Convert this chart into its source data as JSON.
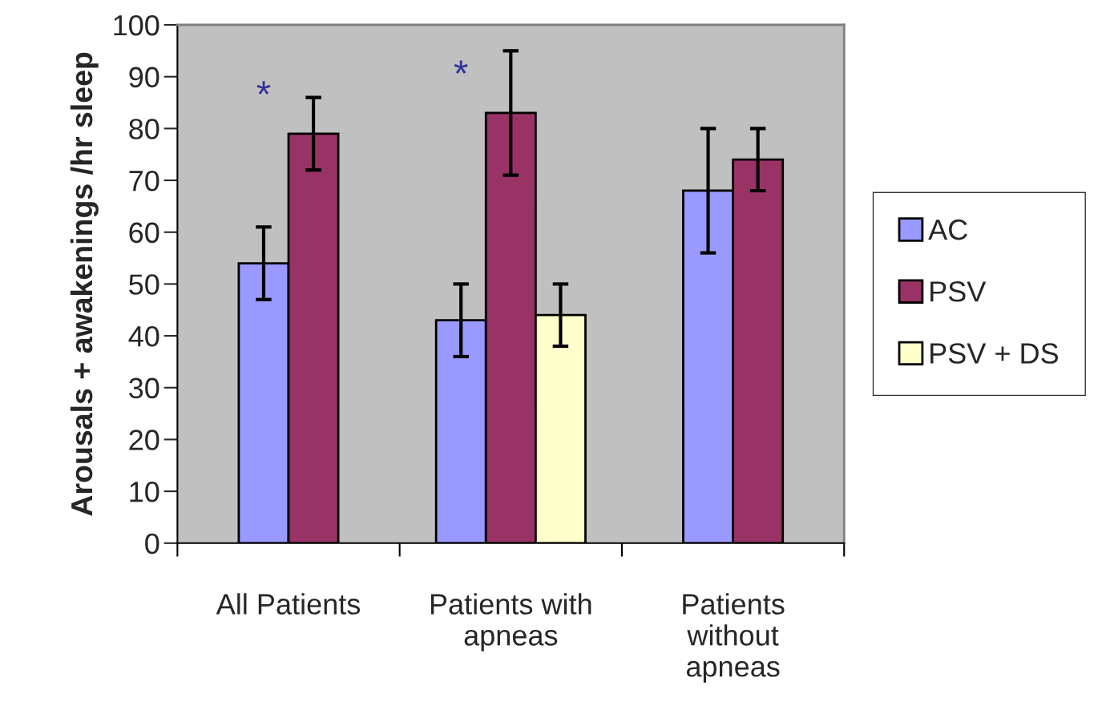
{
  "chart_data": {
    "type": "bar",
    "ylabel": "Arousals + awakenings /hr sleep",
    "categories": [
      "All Patients",
      "Patients with\napneas",
      "Patients\nwithout\napneas"
    ],
    "series": [
      {
        "name": "AC",
        "color": "#9999ff",
        "values": [
          54,
          43,
          68
        ],
        "errors": [
          7,
          7,
          12
        ]
      },
      {
        "name": "PSV",
        "color": "#993366",
        "values": [
          79,
          83,
          74
        ],
        "errors": [
          7,
          12,
          6
        ]
      },
      {
        "name": "PSV + DS",
        "color": "#ffffcc",
        "values": [
          null,
          44,
          null
        ],
        "errors": [
          null,
          6,
          null
        ]
      }
    ],
    "ylim": [
      0,
      100
    ],
    "yticks": [
      0,
      10,
      20,
      30,
      40,
      50,
      60,
      70,
      80,
      90,
      100
    ],
    "annotations": [
      "*",
      "*"
    ],
    "legend": "right",
    "grid": false
  }
}
